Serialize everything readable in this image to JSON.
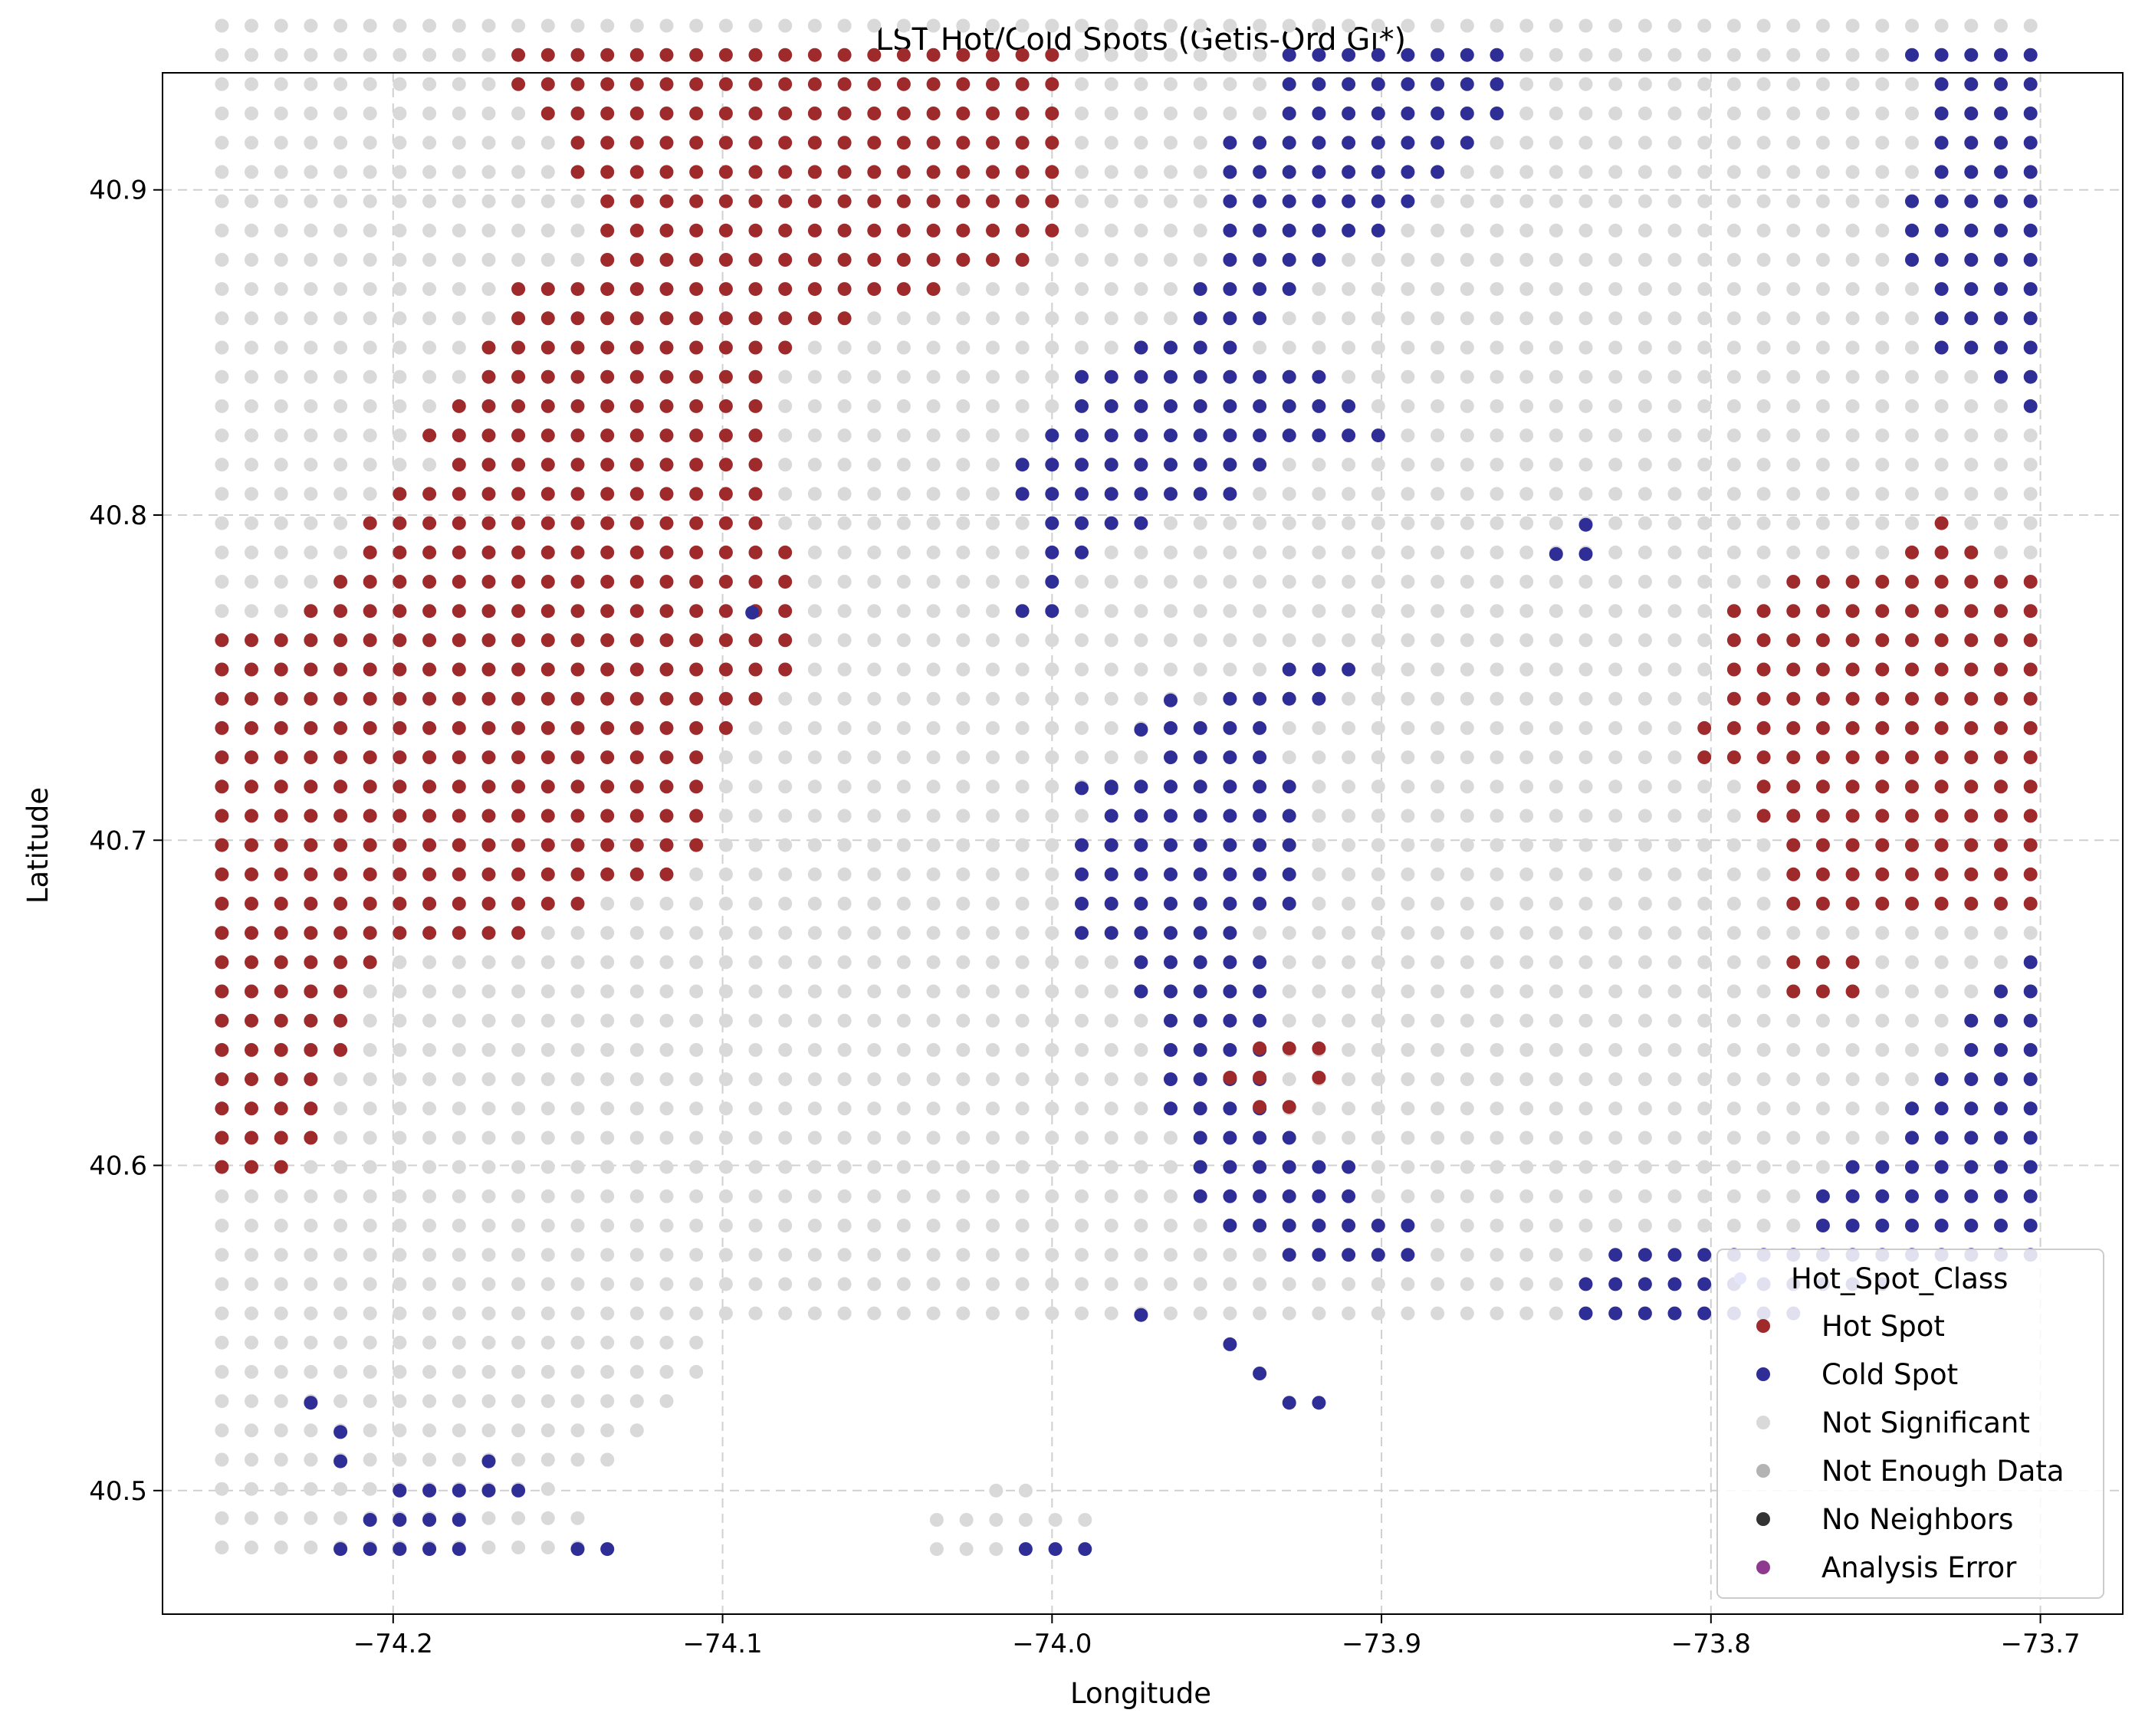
{
  "chart_data": {
    "type": "scatter",
    "title": "LST Hot/Cold Spots (Getis-Ord Gi*)",
    "xlabel": "Longitude",
    "ylabel": "Latitude",
    "xlim": [
      -74.27,
      -73.675
    ],
    "ylim": [
      40.462,
      40.936
    ],
    "xticks": [
      -74.2,
      -74.1,
      -74.0,
      -73.9,
      -73.8,
      -73.7
    ],
    "xtick_labels": [
      "−74.2",
      "−74.1",
      "−74.0",
      "−73.9",
      "−73.8",
      "−73.7"
    ],
    "yticks": [
      40.5,
      40.6,
      40.7,
      40.8,
      40.9
    ],
    "ytick_labels": [
      "40.5",
      "40.6",
      "40.7",
      "40.8",
      "40.9"
    ],
    "grid": true,
    "legend": {
      "title": "Hot_Spot_Class",
      "placement": "lower-right",
      "entries": [
        "Hot Spot",
        "Cold Spot",
        "Not Significant",
        "Not Enough Data",
        "No Neighbors",
        "Analysis Error"
      ]
    },
    "colors": {
      "Hot Spot": "#9e2a2b",
      "Cold Spot": "#2e2e96",
      "Not Significant": "#d9d9d9",
      "Not Enough Data": "#b3b3b3",
      "No Neighbors": "#333333",
      "Analysis Error": "#8e3a8e"
    },
    "grid_origin": {
      "lon": -74.252,
      "lat": 40.4825
    },
    "grid_step": {
      "lon": 0.009,
      "lat": 0.009
    },
    "rows": [
      "NNNNNNNNNNNNNNNNNNNNNNNNNNNNNNNNNNNNNNNNNNNNNNNNNNNNNNNNNNNNNNNNN",
      "NNNNNNNNNNHHHHHHHHHHHHHHHHHHHNNNNNNNCCCCCCCCNNNNNNNNNNNNNCCCCCCN",
      "NNNNNNNNNNHHHHHHHHHHHHHHHHHHHNNNNNNNCCCCCCCCNNNNNNNNNNNNNNCCCCNNN",
      "NNNNNNNNNNNHHHHHHHHHHHHHHHHHHNNNNNNNCCCCCCCCNNNNNNNNNNNNNNCCCCNNN",
      "NNNNNNNNNNNNHHHHHHHHHHHHHHHHHNNNNNCCCCCCCCCNNNNNNNNNNNNNNNCCCCCCCC",
      "NNNNNNNNNNNNHHHHHHHHHHHHHHHHHNNNNNCCCCCCCCNNNNNNNNNNNNNNNNCCCCCCCC",
      "NNNNNNNNNNNNNHHHHHHHHHHHHHHHHNNNNNCCCCCCCNNNNNNNNNNNNNNNNCCCCCCCCCCC",
      "NNNNNNNNNNNNNHHHHHHHHHHHHHHHHNNNNNCCCCCCNNNNNNNNNNNNNNNNNCCCCCCCCCCC",
      "NNNNNNNNNNNNNHHHHHHHHHHHHHHHNNNNNNCCCCNNNNNNNNNNNNNNNNNNNCCCCCCCCCCC",
      "NNNNNNNNNNHHHHHHHHHHHHHHHNNNNNNNNCCCCNNNNNNNNNNNNNNNNNNNNNCCCCCCCCCC",
      "NNNNNNNNNNHHHHHHHHHHHHNNNNNNNNNNNCCCNNNNNNNNNNNNNNNNNNNNNNCCCCCCCCCC",
      "NNNNNNNNNHHHHHHHHHHHNNNNNNNNNNNCCCCNNNNNNNNNNNNNNNNNNNNNNNCCCCCCCCCC",
      "NNNNNNNNNHHHHHHHHHHNNNNNNNNNNCCCCCCCCCNNNNNNNNNNNNNNNNNNNNNNCCCCCCCC",
      "NNNNNNNNHHHHHHHHHHHNNNNNNNNNNCCCCCCCCCCNNNNNNNNNNNNNNNNNNNNNNCCCCCCC",
      "NNNNNNNHHHHHHHHHHHHNNNNNNNNNCCCCCCCCCCCCNNNNNNNNNNNNNNNNNNNNNNNNNNNNN",
      "NNNNNNNNHHHHHHHHHHHNNNNNNNNCCCCCCCCCNNNNNNNNNNNNNNNNNNNNNNNNNNNNNN",
      "NNNNNNHHHHHHHHHHHHHNNNNNNNNCCCCCCCCNNNNNNNNNNNNNNNNNNNNNNNNNNNNNN",
      "NNNNNHHHHHHHHHHHHHHNNNNNNNNNCCCCNNNNNNNNNNNNNNNNNNNNNNNNNNHNNNNNN",
      "NNNNNHHHHHHHHHHHHHHHNNNNNNNNCCNNNNNNNNNNNNNNNNNNNNNNNNNNNHHHNNNNN",
      "NNNNHHHHHHHHHHHHHHHHNNNNNNNNCNNNNNNNNNNNNNNNNNNNNNNNNHHHHHHHHHHHHHH",
      "NNNHHHHHHHHHHHHHHHHHNNNNNNNCCNNNNNNNNNNNNNNNNNNNNNNHHHHHHHHHHHHHHHH",
      "HHHHHHHHHHHHHHHHHHHHNNNNNNNNNNNNNNNNNNNNNNNNNNNNNNNHHHHHHHHHHHHHHHHH",
      "HHHHHHHHHHHHHHHHHHHHNNNNNNNNNNNNNNNNCCCNNNNNNNNNNNNHHHHHHHHHHHHHHHHHH",
      "HHHHHHHHHHHHHHHHHHHNNNNNNNNNNNNNNNCCCCNNNNNNNNNNNNNHHHHHHHHHHHHHHHHHH",
      "HHHHHHHHHHHHHHHHHHNNNNNNNNNNNNNNCCCCNNNNNNNNNNNNNNHHHHHHHHHHHHHHHHHHH",
      "HHHHHHHHHHHHHHHHHNNNNNNNNNNNNNNNCCCCNNNNNNNNNNNNNNHHHHHHHHHHHHHHHHHHH",
      "HHHHHHHHHHHHHHHHHNNNNNNNNNNNNNCCCCCCCNNNNNNNNNNNNNNNHHHHHHHHHHHHHHHHHH",
      "HHHHHHHHHHHHHHHHHNNNNNNNNNNNNNCCCCCCCNNNNNNNNNNNNNNNHHHHHHHHHHHHHHHHHH",
      "HHHHHHHHHHHHHHHHHNNNNNNNNNNNNCCCCCCCCNNNNNNNNNNNNNNNNHHHHHHHHHHHHHHHHH",
      "HHHHHHHHHHHHHHHHNNNNNNNNNNNNNCCCCCCCCNNNNNNNNNNNNNNNNHHHHHHHHHHHHHHHHH",
      "HHHHHHHHHHHHHNNNNNNNNNNNNNNNNCCCCCCCCNNNNNNNNNNNNNNNNHHHHHHHHHHHHHHHHH",
      "HHHHHHHHHHHNNNNNNNNNNNNNNNNNNCCCCCCNNNNNNNNNNNNNNNNNNNNNNNNNNNHHNNNNN",
      "HHHHHHNNNNNNNNNNNNNNNNNNNNNNNNNCCCCCNNNNNNNNNNNNNNNNNHHHNNNNNCCCCNNNNNNN",
      "HHHHHNNNNNNNNNNNNNNNNNNNNNNNNNNCCCCCNNNNNNNNNNNNNNNNNHHHNNNNCCCCCCCCCCCCCC",
      "HHHHHNNNNNNNNNNNNNNNNNNNNNNNNNNNCCCCNNNNNNNNNNNNNNNNNNNNNNNCCCCCCCCCCCCCCCCC",
      "HHHHHNNNNNNNNNNNNNNNNNNNNNNNNNNNCCCCNNNNNNNNNNNNNNNNNNNNNNNCCCCCCCCCCCCCCCCC",
      "HHHHNNNNNNNNNNNNNNNNNNNNNNNNNNNNCCCCNNNNNNNNNNNNNNNNNNNNNNCCCCCCCCCCCCCCCCCC",
      "HHHHNNNNNNNNNNNNNNNNNNNNNNNNNNNNCCCCNNNNNNNNNNNNNNNNNNNNNCCCCCCCCCCCCCCCCCCN",
      "HHHHNNNNNNNNNNNNNNNNNNNNNNNNNNNNNCCCCNNNNNNNNNNNNNNNNNNNNCCCCCCCCCCCCCCCCCCNC",
      "HHHNNNNNNNNNNNNNNNNNNNNNNNNNNNNNNCCCCCCNNNNNNNNNNNNNNNNCCCCCCCCCCCCCCCCCCCNC",
      "NNNNNNNNNNNNNNNNNNNNNNNNNNNNNNNNNCCCCCCNNNNNNNNNNNNNNNCCCCCCCCCCCCCCCCCCCCN",
      "NNNNNNNNNNNNNNNNNNNNNNNNNNNNNNNNNNCCCCCCCNNNNNNNNNNNNNCCCCCCCCCCCCCCCCCCNNN",
      "NNNNNNNNNNNNNNNNNNNNNNNNNNNNNNNNNNNNCCCCCNNNNNNCCCCCCCCCCCCCCCC",
      "NNNNNNNNNNNNNNNNNNNNNNNNNNNNNNNNNNNNNNNNNNNNNNCCCCCCCCCCC",
      "NNNNNNNNNNNNNNNNNNNNNNNNNNNNNNNNNNNNNNNNNNNNNNCCCCCCCC",
      "NNNNNNNNNNNNNNNNN",
      "NNNNNNNNNNNNNNNNN",
      "NNNNNNNNNNNNNNNN",
      "NNNNNNNNNNNNNNN",
      "NNNNNNNNNNNNNN",
      "NNNNNNNNNNNN",
      "NNNNNNNNNNNNN",
      "NNNNNNNNNNNNN"
    ],
    "extra_points": [
      {
        "lon": -74.091,
        "lat": 40.77,
        "cls": "Cold Spot"
      },
      {
        "lon": -73.964,
        "lat": 40.743,
        "cls": "Cold Spot"
      },
      {
        "lon": -73.973,
        "lat": 40.734,
        "cls": "Cold Spot"
      },
      {
        "lon": -73.982,
        "lat": 40.716,
        "cls": "Cold Spot"
      },
      {
        "lon": -73.991,
        "lat": 40.716,
        "cls": "Cold Spot"
      },
      {
        "lon": -73.847,
        "lat": 40.788,
        "cls": "Cold Spot"
      },
      {
        "lon": -73.838,
        "lat": 40.788,
        "cls": "Cold Spot"
      },
      {
        "lon": -73.838,
        "lat": 40.797,
        "cls": "Cold Spot"
      },
      {
        "lon": -73.973,
        "lat": 40.554,
        "cls": "Cold Spot"
      },
      {
        "lon": -73.946,
        "lat": 40.545,
        "cls": "Cold Spot"
      },
      {
        "lon": -73.937,
        "lat": 40.536,
        "cls": "Cold Spot"
      },
      {
        "lon": -73.928,
        "lat": 40.527,
        "cls": "Cold Spot"
      },
      {
        "lon": -73.919,
        "lat": 40.527,
        "cls": "Cold Spot"
      },
      {
        "lon": -74.225,
        "lat": 40.527,
        "cls": "Cold Spot"
      },
      {
        "lon": -74.216,
        "lat": 40.518,
        "cls": "Cold Spot"
      },
      {
        "lon": -74.216,
        "lat": 40.509,
        "cls": "Cold Spot"
      },
      {
        "lon": -74.171,
        "lat": 40.509,
        "cls": "Cold Spot"
      },
      {
        "lon": -74.198,
        "lat": 40.5,
        "cls": "Cold Spot"
      },
      {
        "lon": -74.189,
        "lat": 40.5,
        "cls": "Cold Spot"
      },
      {
        "lon": -74.18,
        "lat": 40.5,
        "cls": "Cold Spot"
      },
      {
        "lon": -74.171,
        "lat": 40.5,
        "cls": "Cold Spot"
      },
      {
        "lon": -74.162,
        "lat": 40.5,
        "cls": "Cold Spot"
      },
      {
        "lon": -74.207,
        "lat": 40.491,
        "cls": "Cold Spot"
      },
      {
        "lon": -74.198,
        "lat": 40.491,
        "cls": "Cold Spot"
      },
      {
        "lon": -74.189,
        "lat": 40.491,
        "cls": "Cold Spot"
      },
      {
        "lon": -74.18,
        "lat": 40.491,
        "cls": "Cold Spot"
      },
      {
        "lon": -74.216,
        "lat": 40.482,
        "cls": "Cold Spot"
      },
      {
        "lon": -74.207,
        "lat": 40.482,
        "cls": "Cold Spot"
      },
      {
        "lon": -74.198,
        "lat": 40.482,
        "cls": "Cold Spot"
      },
      {
        "lon": -74.189,
        "lat": 40.482,
        "cls": "Cold Spot"
      },
      {
        "lon": -74.18,
        "lat": 40.482,
        "cls": "Cold Spot"
      },
      {
        "lon": -74.144,
        "lat": 40.482,
        "cls": "Cold Spot"
      },
      {
        "lon": -74.135,
        "lat": 40.482,
        "cls": "Cold Spot"
      },
      {
        "lon": -74.008,
        "lat": 40.482,
        "cls": "Cold Spot"
      },
      {
        "lon": -73.999,
        "lat": 40.482,
        "cls": "Cold Spot"
      },
      {
        "lon": -73.99,
        "lat": 40.482,
        "cls": "Cold Spot"
      },
      {
        "lon": -74.035,
        "lat": 40.491,
        "cls": "Not Significant"
      },
      {
        "lon": -74.026,
        "lat": 40.491,
        "cls": "Not Significant"
      },
      {
        "lon": -74.017,
        "lat": 40.491,
        "cls": "Not Significant"
      },
      {
        "lon": -74.008,
        "lat": 40.491,
        "cls": "Not Significant"
      },
      {
        "lon": -73.999,
        "lat": 40.491,
        "cls": "Not Significant"
      },
      {
        "lon": -73.99,
        "lat": 40.491,
        "cls": "Not Significant"
      },
      {
        "lon": -74.035,
        "lat": 40.482,
        "cls": "Not Significant"
      },
      {
        "lon": -74.026,
        "lat": 40.482,
        "cls": "Not Significant"
      },
      {
        "lon": -74.017,
        "lat": 40.482,
        "cls": "Not Significant"
      },
      {
        "lon": -74.017,
        "lat": 40.5,
        "cls": "Not Significant"
      },
      {
        "lon": -74.008,
        "lat": 40.5,
        "cls": "Not Significant"
      },
      {
        "lon": -73.946,
        "lat": 40.627,
        "cls": "Hot Spot"
      },
      {
        "lon": -73.937,
        "lat": 40.627,
        "cls": "Hot Spot"
      },
      {
        "lon": -73.937,
        "lat": 40.636,
        "cls": "Hot Spot"
      },
      {
        "lon": -73.928,
        "lat": 40.636,
        "cls": "Hot Spot"
      },
      {
        "lon": -73.919,
        "lat": 40.636,
        "cls": "Hot Spot"
      },
      {
        "lon": -73.919,
        "lat": 40.627,
        "cls": "Hot Spot"
      },
      {
        "lon": -73.937,
        "lat": 40.618,
        "cls": "Hot Spot"
      },
      {
        "lon": -73.928,
        "lat": 40.618,
        "cls": "Hot Spot"
      }
    ]
  }
}
